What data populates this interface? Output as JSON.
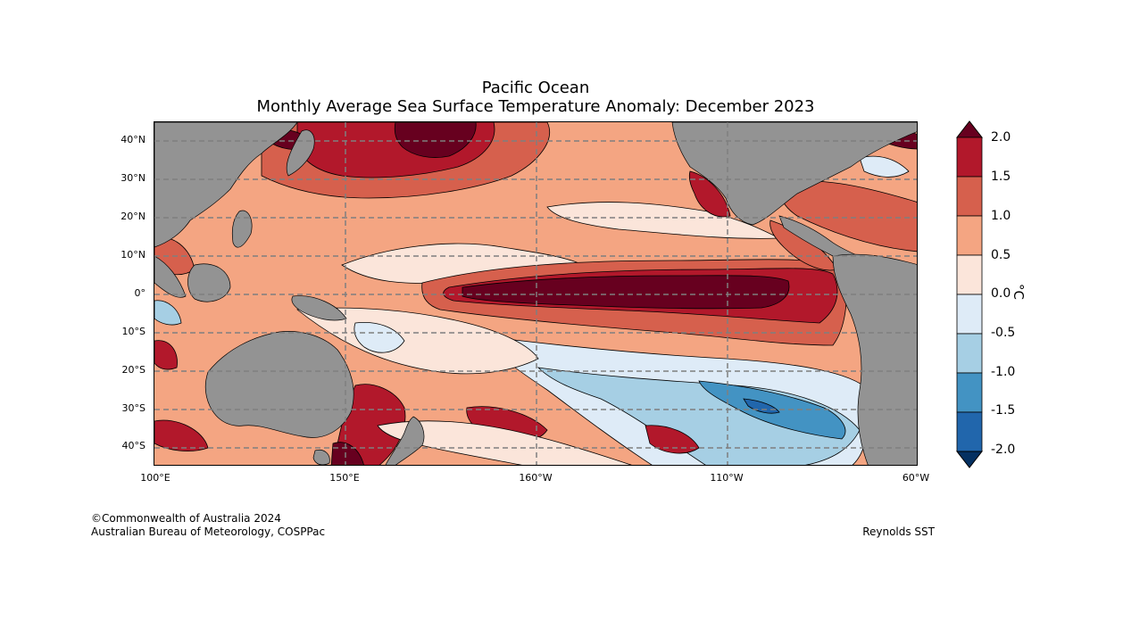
{
  "title": "Pacific Ocean",
  "subtitle": "Monthly Average Sea Surface Temperature Anomaly: December 2023",
  "map": {
    "region": "Pacific Ocean",
    "lon_range": [
      100,
      300
    ],
    "lat_range": [
      -45,
      45
    ],
    "lat_labels": [
      {
        "lat": 40,
        "text": "40°N"
      },
      {
        "lat": 30,
        "text": "30°N"
      },
      {
        "lat": 20,
        "text": "20°N"
      },
      {
        "lat": 10,
        "text": "10°N"
      },
      {
        "lat": 0,
        "text": "0°"
      },
      {
        "lat": -10,
        "text": "10°S"
      },
      {
        "lat": -20,
        "text": "20°S"
      },
      {
        "lat": -30,
        "text": "30°S"
      },
      {
        "lat": -40,
        "text": "40°S"
      }
    ],
    "lon_labels": [
      {
        "lon": 100,
        "text": "100°E"
      },
      {
        "lon": 150,
        "text": "150°E"
      },
      {
        "lon": 200,
        "text": "160°W"
      },
      {
        "lon": 250,
        "text": "110°W"
      },
      {
        "lon": 300,
        "text": "60°W"
      }
    ],
    "gridlines": true,
    "land_color": "#939393"
  },
  "colorbar": {
    "unit": "°C",
    "ticks": [
      "2.0",
      "1.5",
      "1.0",
      "0.5",
      "0.0",
      "-0.5",
      "-1.0",
      "-1.5",
      "-2.0"
    ],
    "levels": [
      {
        "range": [
          1.5,
          2.0
        ],
        "color": "#b2182b"
      },
      {
        "range": [
          1.0,
          1.5
        ],
        "color": "#d6604d"
      },
      {
        "range": [
          0.5,
          1.0
        ],
        "color": "#f4a582"
      },
      {
        "range": [
          0.0,
          0.5
        ],
        "color": "#fbe5da"
      },
      {
        "range": [
          -0.5,
          0.0
        ],
        "color": "#deebf7"
      },
      {
        "range": [
          -1.0,
          -0.5
        ],
        "color": "#a6cfe4"
      },
      {
        "range": [
          -1.5,
          -1.0
        ],
        "color": "#4393c3"
      },
      {
        "range": [
          -2.0,
          -1.5
        ],
        "color": "#2166ac"
      }
    ],
    "over_color": "#67001f",
    "under_color": "#053061"
  },
  "credits": {
    "line1": "©Commonwealth of Australia 2024",
    "line2": "Australian Bureau of Meteorology, COSPPac",
    "source": "Reynolds SST"
  }
}
